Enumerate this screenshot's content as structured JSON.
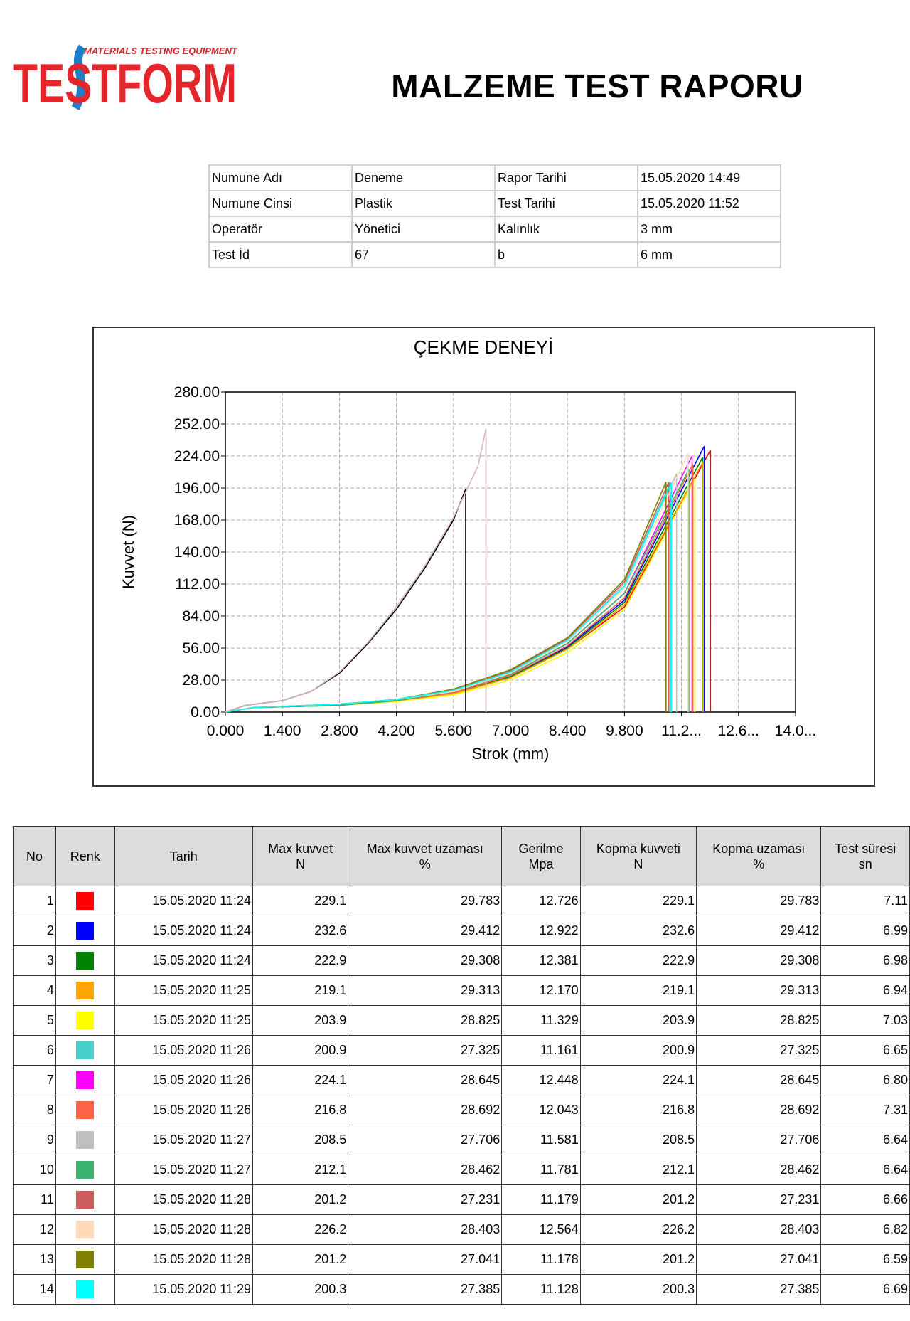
{
  "header": {
    "logo_text": "TESTFORM",
    "logo_subtitle": "MATERIALS TESTING EQUIPMENT",
    "title": "MALZEME TEST RAPORU"
  },
  "info_table": {
    "rows": [
      [
        "Numune Adı",
        "Deneme",
        "Rapor Tarihi",
        "15.05.2020 14:49"
      ],
      [
        "Numune Cinsi",
        "Plastik",
        "Test Tarihi",
        "15.05.2020 11:52"
      ],
      [
        "Operatör",
        "Yönetici",
        "Kalınlık",
        "3 mm"
      ],
      [
        "Test İd",
        "67",
        "b",
        "6 mm"
      ]
    ]
  },
  "chart_data": {
    "type": "line",
    "title": "ÇEKME DENEYİ",
    "x_label": "Strok (mm)",
    "y_label": "Kuvvet (N)",
    "xlim": [
      0,
      14
    ],
    "ylim": [
      0,
      280
    ],
    "xticks": [
      {
        "value": 0,
        "label": "0.000"
      },
      {
        "value": 1.4,
        "label": "1.400"
      },
      {
        "value": 2.8,
        "label": "2.800"
      },
      {
        "value": 4.2,
        "label": "4.200"
      },
      {
        "value": 5.6,
        "label": "5.600"
      },
      {
        "value": 7,
        "label": "7.000"
      },
      {
        "value": 8.4,
        "label": "8.400"
      },
      {
        "value": 9.8,
        "label": "9.800"
      },
      {
        "value": 11.2,
        "label": "11.2..."
      },
      {
        "value": 12.6,
        "label": "12.6..."
      },
      {
        "value": 14,
        "label": "14.0..."
      }
    ],
    "yticks": [
      {
        "value": 0,
        "label": "0.00"
      },
      {
        "value": 28,
        "label": "28.00"
      },
      {
        "value": 56,
        "label": "56.00"
      },
      {
        "value": 84,
        "label": "84.00"
      },
      {
        "value": 112,
        "label": "112.00"
      },
      {
        "value": 140,
        "label": "140.00"
      },
      {
        "value": 168,
        "label": "168.00"
      },
      {
        "value": 196,
        "label": "196.00"
      },
      {
        "value": 224,
        "label": "224.00"
      },
      {
        "value": 252,
        "label": "252.00"
      },
      {
        "value": 280,
        "label": "280.00"
      }
    ],
    "grid": true,
    "series": [
      {
        "color": "#ff0000",
        "x": [
          0,
          0.7,
          2.8,
          4.2,
          5.6,
          7.0,
          8.4,
          9.8,
          11.91,
          11.91
        ],
        "values": [
          0,
          4,
          6,
          10,
          16,
          30,
          55,
          92,
          229.1,
          0
        ]
      },
      {
        "color": "#0000ff",
        "x": [
          0,
          0.7,
          2.8,
          4.2,
          5.6,
          7.0,
          8.4,
          9.8,
          11.76,
          11.76
        ],
        "values": [
          0,
          4,
          6,
          10,
          17,
          31,
          57,
          98,
          232.6,
          0
        ]
      },
      {
        "color": "#008000",
        "x": [
          0,
          0.7,
          2.8,
          4.2,
          5.6,
          7.0,
          8.4,
          9.8,
          11.72,
          11.72
        ],
        "values": [
          0,
          4,
          6,
          10,
          16,
          31,
          56,
          96,
          222.9,
          0
        ]
      },
      {
        "color": "#ffa500",
        "x": [
          0,
          0.7,
          2.8,
          4.2,
          5.6,
          7.0,
          8.4,
          9.8,
          11.73,
          11.73
        ],
        "values": [
          0,
          4,
          6,
          10,
          16,
          30,
          55,
          94,
          219.1,
          0
        ]
      },
      {
        "color": "#ffff00",
        "x": [
          0,
          0.7,
          2.8,
          4.2,
          5.6,
          7.0,
          8.4,
          9.8,
          11.53,
          11.53
        ],
        "values": [
          0,
          4,
          6,
          9,
          15,
          28,
          52,
          90,
          203.9,
          0
        ]
      },
      {
        "color": "#48d1cc",
        "x": [
          0,
          0.7,
          2.8,
          4.2,
          5.6,
          7.0,
          8.4,
          9.8,
          10.93,
          10.93
        ],
        "values": [
          0,
          4,
          7,
          11,
          19,
          35,
          63,
          112,
          200.9,
          0
        ]
      },
      {
        "color": "#ff00ff",
        "x": [
          0,
          0.7,
          2.8,
          4.2,
          5.6,
          7.0,
          8.4,
          9.8,
          11.46,
          11.46
        ],
        "values": [
          0,
          4,
          6,
          10,
          17,
          33,
          60,
          104,
          224.1,
          0
        ]
      },
      {
        "color": "#ff6347",
        "x": [
          0,
          0.7,
          2.8,
          4.2,
          5.6,
          7.0,
          8.4,
          9.8,
          11.48,
          11.48
        ],
        "values": [
          0,
          4,
          6,
          10,
          17,
          32,
          58,
          100,
          216.8,
          0
        ]
      },
      {
        "color": "#c0c0c0",
        "x": [
          0,
          0.7,
          2.8,
          4.2,
          5.6,
          7.0,
          8.4,
          9.8,
          11.08,
          11.08
        ],
        "values": [
          0,
          4,
          7,
          11,
          19,
          35,
          63,
          112,
          208.5,
          0
        ]
      },
      {
        "color": "#3cb371",
        "x": [
          0,
          0.7,
          2.8,
          4.2,
          5.6,
          7.0,
          8.4,
          9.8,
          11.38,
          11.38
        ],
        "values": [
          0,
          4,
          6,
          10,
          18,
          33,
          60,
          104,
          212.1,
          0
        ]
      },
      {
        "color": "#cd5c5c",
        "x": [
          0,
          0.7,
          2.8,
          4.2,
          5.6,
          7.0,
          8.4,
          9.8,
          10.89,
          10.89
        ],
        "values": [
          0,
          4,
          7,
          11,
          19,
          36,
          64,
          114,
          201.2,
          0
        ]
      },
      {
        "color": "#ffdab9",
        "x": [
          0,
          0.7,
          2.8,
          4.2,
          5.6,
          7.0,
          8.4,
          9.8,
          11.36,
          11.36
        ],
        "values": [
          0,
          4,
          7,
          11,
          18,
          34,
          62,
          108,
          226.2,
          0
        ]
      },
      {
        "color": "#808000",
        "x": [
          0,
          0.7,
          2.8,
          4.2,
          5.6,
          7.0,
          8.4,
          9.8,
          10.82,
          10.82
        ],
        "values": [
          0,
          4,
          7,
          11,
          20,
          37,
          65,
          116,
          201.2,
          0
        ]
      },
      {
        "color": "#00ffff",
        "x": [
          0,
          0.7,
          2.8,
          4.2,
          5.6,
          7.0,
          8.4,
          9.8,
          10.95,
          10.95
        ],
        "values": [
          0,
          4,
          7,
          11,
          19,
          35,
          63,
          110,
          200.3,
          0
        ]
      },
      {
        "color": "#000000",
        "x": [
          0,
          0.5,
          1.4,
          2.1,
          2.8,
          3.5,
          4.2,
          4.9,
          5.6,
          5.9,
          5.9
        ],
        "values": [
          0,
          6,
          10,
          18,
          34,
          60,
          90,
          126,
          168,
          195,
          0
        ]
      },
      {
        "color": "#d8b4b4",
        "x": [
          0,
          0.5,
          1.4,
          2.1,
          2.8,
          3.5,
          4.2,
          4.9,
          5.6,
          6.2,
          6.4,
          6.4
        ],
        "values": [
          0,
          6,
          10,
          18,
          35,
          61,
          92,
          128,
          170,
          215,
          248,
          0
        ]
      }
    ]
  },
  "results": {
    "header": [
      [
        "No"
      ],
      [
        "Renk"
      ],
      [
        "Tarih"
      ],
      [
        "Max kuvvet",
        "N"
      ],
      [
        "Max kuvvet uzaması",
        "%"
      ],
      [
        "Gerilme",
        "Mpa"
      ],
      [
        "Kopma kuvveti",
        "N"
      ],
      [
        "Kopma uzaması",
        "%"
      ],
      [
        "Test süresi",
        "sn"
      ]
    ],
    "rows": [
      [
        "1",
        "#ff0000",
        "15.05.2020 11:24",
        "229.1",
        "29.783",
        "12.726",
        "229.1",
        "29.783",
        "7.11"
      ],
      [
        "2",
        "#0000ff",
        "15.05.2020 11:24",
        "232.6",
        "29.412",
        "12.922",
        "232.6",
        "29.412",
        "6.99"
      ],
      [
        "3",
        "#008000",
        "15.05.2020 11:24",
        "222.9",
        "29.308",
        "12.381",
        "222.9",
        "29.308",
        "6.98"
      ],
      [
        "4",
        "#ffa500",
        "15.05.2020 11:25",
        "219.1",
        "29.313",
        "12.170",
        "219.1",
        "29.313",
        "6.94"
      ],
      [
        "5",
        "#ffff00",
        "15.05.2020 11:25",
        "203.9",
        "28.825",
        "11.329",
        "203.9",
        "28.825",
        "7.03"
      ],
      [
        "6",
        "#48d1cc",
        "15.05.2020 11:26",
        "200.9",
        "27.325",
        "11.161",
        "200.9",
        "27.325",
        "6.65"
      ],
      [
        "7",
        "#ff00ff",
        "15.05.2020 11:26",
        "224.1",
        "28.645",
        "12.448",
        "224.1",
        "28.645",
        "6.80"
      ],
      [
        "8",
        "#ff6347",
        "15.05.2020 11:26",
        "216.8",
        "28.692",
        "12.043",
        "216.8",
        "28.692",
        "7.31"
      ],
      [
        "9",
        "#c0c0c0",
        "15.05.2020 11:27",
        "208.5",
        "27.706",
        "11.581",
        "208.5",
        "27.706",
        "6.64"
      ],
      [
        "10",
        "#3cb371",
        "15.05.2020 11:27",
        "212.1",
        "28.462",
        "11.781",
        "212.1",
        "28.462",
        "6.64"
      ],
      [
        "11",
        "#cd5c5c",
        "15.05.2020 11:28",
        "201.2",
        "27.231",
        "11.179",
        "201.2",
        "27.231",
        "6.66"
      ],
      [
        "12",
        "#ffdab9",
        "15.05.2020 11:28",
        "226.2",
        "28.403",
        "12.564",
        "226.2",
        "28.403",
        "6.82"
      ],
      [
        "13",
        "#808000",
        "15.05.2020 11:28",
        "201.2",
        "27.041",
        "11.178",
        "201.2",
        "27.041",
        "6.59"
      ],
      [
        "14",
        "#00ffff",
        "15.05.2020 11:29",
        "200.3",
        "27.385",
        "11.128",
        "200.3",
        "27.385",
        "6.69"
      ]
    ]
  }
}
